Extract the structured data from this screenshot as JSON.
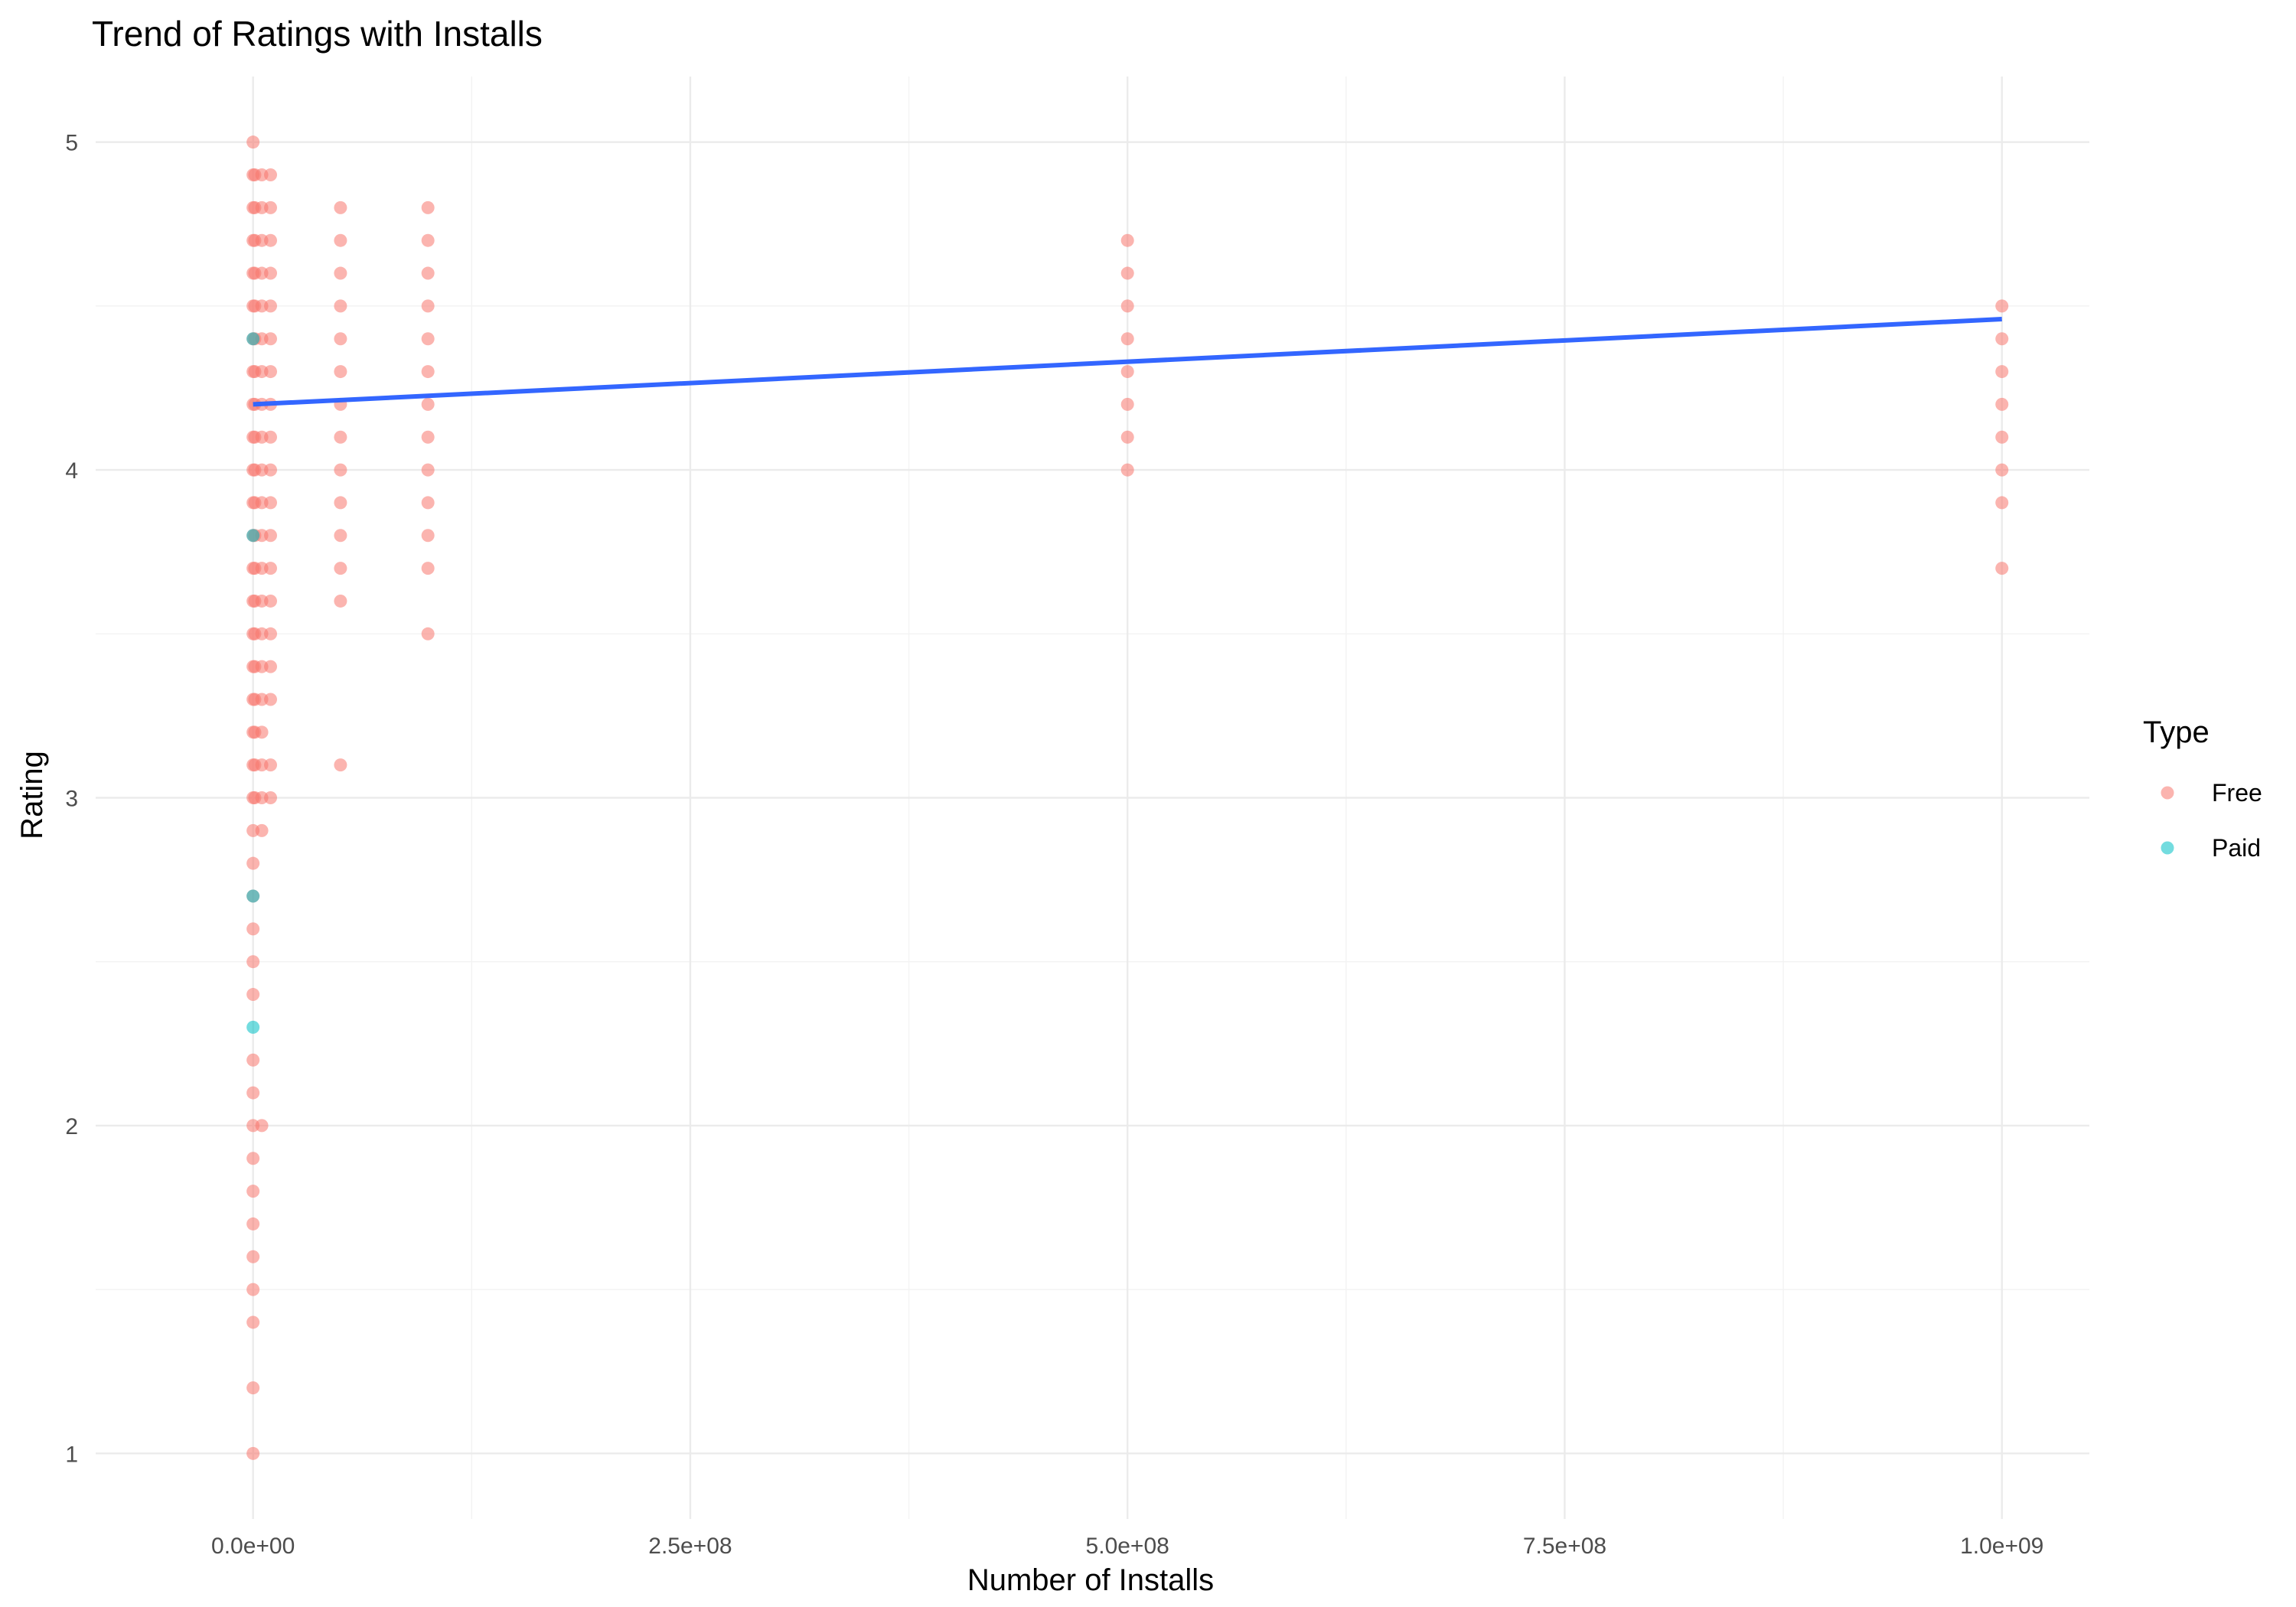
{
  "chart_data": {
    "type": "scatter",
    "title": "Trend of Ratings with Installs",
    "xlabel": "Number of Installs",
    "ylabel": "Rating",
    "xlim": [
      -90000000,
      1050000000
    ],
    "ylim": [
      0.8,
      5.2
    ],
    "x_ticks": [
      {
        "value": 0,
        "label": "0.0e+00"
      },
      {
        "value": 250000000,
        "label": "2.5e+08"
      },
      {
        "value": 500000000,
        "label": "5.0e+08"
      },
      {
        "value": 750000000,
        "label": "7.5e+08"
      },
      {
        "value": 1000000000,
        "label": "1.0e+09"
      }
    ],
    "x_minor": [
      125000000,
      375000000,
      625000000,
      875000000
    ],
    "y_ticks": [
      {
        "value": 1,
        "label": "1"
      },
      {
        "value": 2,
        "label": "2"
      },
      {
        "value": 3,
        "label": "3"
      },
      {
        "value": 4,
        "label": "4"
      },
      {
        "value": 5,
        "label": "5"
      }
    ],
    "y_minor": [
      1.5,
      2.5,
      3.5,
      4.5
    ],
    "grid": true,
    "legend": {
      "title": "Type",
      "placement": "right",
      "entries": [
        {
          "label": "Free",
          "color": "#F8766D"
        },
        {
          "label": "Paid",
          "color": "#00BFC4"
        }
      ]
    },
    "series": [
      {
        "name": "Free",
        "color": "#F8766D",
        "points": [
          {
            "x": 0,
            "ratings": [
              1.0,
              1.2,
              1.4,
              1.5,
              1.6,
              1.7,
              1.8,
              1.9,
              2.0,
              2.1,
              2.2,
              2.4,
              2.5,
              2.6,
              2.7,
              2.8,
              2.9,
              3.0,
              3.1,
              3.2,
              3.3,
              3.4,
              3.5,
              3.6,
              3.7,
              3.8,
              3.9,
              4.0,
              4.1,
              4.2,
              4.3,
              4.4,
              4.5,
              4.6,
              4.7,
              4.8,
              4.9,
              5.0
            ]
          },
          {
            "x": 1000000,
            "ratings": [
              3.0,
              3.1,
              3.2,
              3.3,
              3.4,
              3.5,
              3.6,
              3.7,
              3.8,
              3.9,
              4.0,
              4.1,
              4.2,
              4.3,
              4.4,
              4.5,
              4.6,
              4.7,
              4.8,
              4.9
            ]
          },
          {
            "x": 5000000,
            "ratings": [
              2.0,
              2.9,
              3.0,
              3.1,
              3.2,
              3.3,
              3.4,
              3.5,
              3.6,
              3.7,
              3.8,
              3.9,
              4.0,
              4.1,
              4.2,
              4.3,
              4.4,
              4.5,
              4.6,
              4.7,
              4.8,
              4.9
            ]
          },
          {
            "x": 10000000,
            "ratings": [
              3.0,
              3.1,
              3.3,
              3.4,
              3.5,
              3.6,
              3.7,
              3.8,
              3.9,
              4.0,
              4.1,
              4.2,
              4.3,
              4.4,
              4.5,
              4.6,
              4.7,
              4.8,
              4.9
            ]
          },
          {
            "x": 50000000,
            "ratings": [
              3.1,
              3.6,
              3.7,
              3.8,
              3.9,
              4.0,
              4.1,
              4.2,
              4.3,
              4.4,
              4.5,
              4.6,
              4.7,
              4.8
            ]
          },
          {
            "x": 100000000,
            "ratings": [
              3.5,
              3.7,
              3.8,
              3.9,
              4.0,
              4.1,
              4.2,
              4.3,
              4.4,
              4.5,
              4.6,
              4.7,
              4.8
            ]
          },
          {
            "x": 500000000,
            "ratings": [
              4.0,
              4.1,
              4.2,
              4.3,
              4.4,
              4.5,
              4.6,
              4.7
            ]
          },
          {
            "x": 1000000000,
            "ratings": [
              3.7,
              3.9,
              4.0,
              4.1,
              4.2,
              4.3,
              4.4,
              4.5
            ]
          }
        ]
      },
      {
        "name": "Paid",
        "color": "#00BFC4",
        "points": [
          {
            "x": 0,
            "ratings": [
              2.3,
              2.7,
              3.8,
              4.4
            ]
          }
        ]
      }
    ],
    "trend_line": {
      "color": "#3366FF",
      "points": [
        [
          0,
          4.2
        ],
        [
          1000000000,
          4.46
        ]
      ]
    }
  }
}
